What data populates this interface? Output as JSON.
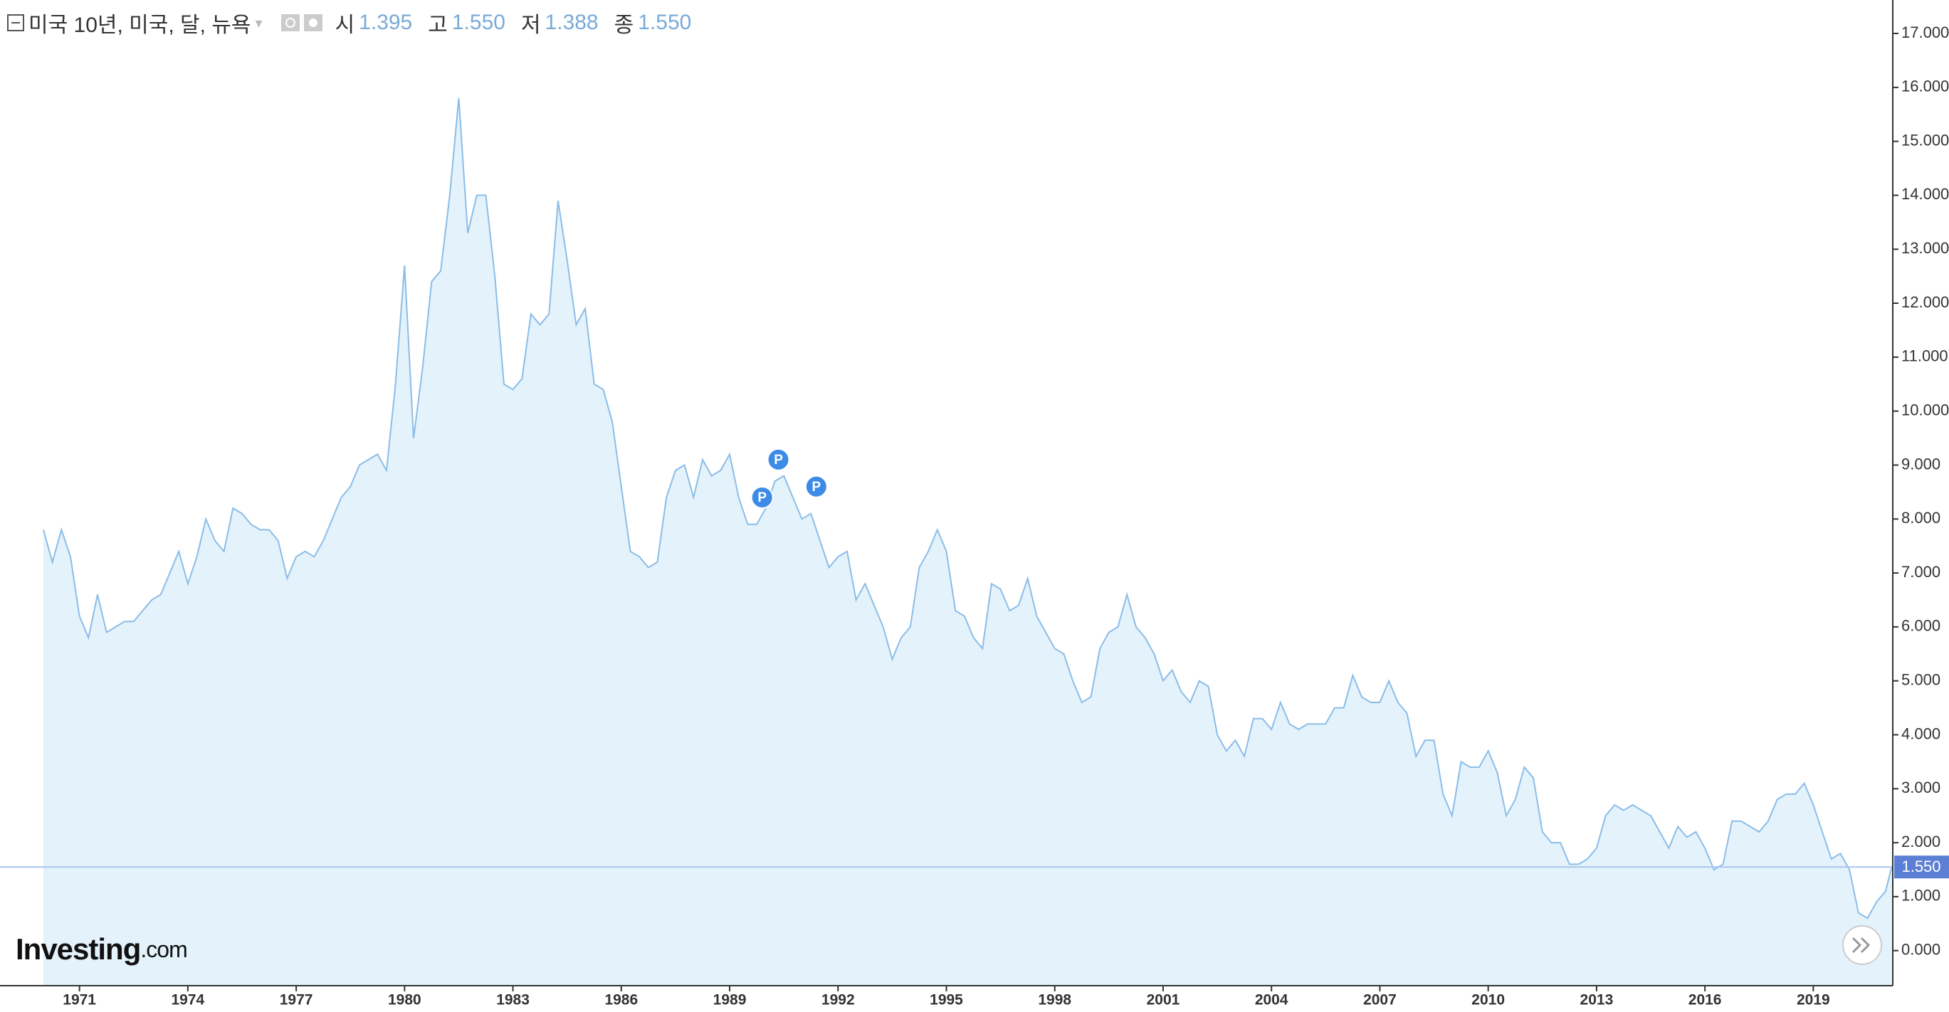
{
  "header": {
    "title": "미국 10년, 미국, 달, 뉴욕",
    "open_label": "시",
    "open": "1.395",
    "high_label": "고",
    "high": "1.550",
    "low_label": "저",
    "low": "1.388",
    "close_label": "종",
    "close": "1.550"
  },
  "brand": "Investing",
  "brand_suffix": ".com",
  "chart_data": {
    "type": "area",
    "color": "#8bbde8",
    "fill": "#e4f2fb",
    "x": [
      1970,
      1970.25,
      1970.5,
      1970.75,
      1971,
      1971.25,
      1971.5,
      1971.75,
      1972,
      1972.25,
      1972.5,
      1972.75,
      1973,
      1973.25,
      1973.5,
      1973.75,
      1974,
      1974.25,
      1974.5,
      1974.75,
      1975,
      1975.25,
      1975.5,
      1975.75,
      1976,
      1976.25,
      1976.5,
      1976.75,
      1977,
      1977.25,
      1977.5,
      1977.75,
      1978,
      1978.25,
      1978.5,
      1978.75,
      1979,
      1979.25,
      1979.5,
      1979.75,
      1980,
      1980.25,
      1980.5,
      1980.75,
      1981,
      1981.25,
      1981.5,
      1981.75,
      1982,
      1982.25,
      1982.5,
      1982.75,
      1983,
      1983.25,
      1983.5,
      1983.75,
      1984,
      1984.25,
      1984.5,
      1984.75,
      1985,
      1985.25,
      1985.5,
      1985.75,
      1986,
      1986.25,
      1986.5,
      1986.75,
      1987,
      1987.25,
      1987.5,
      1987.75,
      1988,
      1988.25,
      1988.5,
      1988.75,
      1989,
      1989.25,
      1989.5,
      1989.75,
      1990,
      1990.25,
      1990.5,
      1990.75,
      1991,
      1991.25,
      1991.5,
      1991.75,
      1992,
      1992.25,
      1992.5,
      1992.75,
      1993,
      1993.25,
      1993.5,
      1993.75,
      1994,
      1994.25,
      1994.5,
      1994.75,
      1995,
      1995.25,
      1995.5,
      1995.75,
      1996,
      1996.25,
      1996.5,
      1996.75,
      1997,
      1997.25,
      1997.5,
      1997.75,
      1998,
      1998.25,
      1998.5,
      1998.75,
      1999,
      1999.25,
      1999.5,
      1999.75,
      2000,
      2000.25,
      2000.5,
      2000.75,
      2001,
      2001.25,
      2001.5,
      2001.75,
      2002,
      2002.25,
      2002.5,
      2002.75,
      2003,
      2003.25,
      2003.5,
      2003.75,
      2004,
      2004.25,
      2004.5,
      2004.75,
      2005,
      2005.25,
      2005.5,
      2005.75,
      2006,
      2006.25,
      2006.5,
      2006.75,
      2007,
      2007.25,
      2007.5,
      2007.75,
      2008,
      2008.25,
      2008.5,
      2008.75,
      2009,
      2009.25,
      2009.5,
      2009.75,
      2010,
      2010.25,
      2010.5,
      2010.75,
      2011,
      2011.25,
      2011.5,
      2011.75,
      2012,
      2012.25,
      2012.5,
      2012.75,
      2013,
      2013.25,
      2013.5,
      2013.75,
      2014,
      2014.25,
      2014.5,
      2014.75,
      2015,
      2015.25,
      2015.5,
      2015.75,
      2016,
      2016.25,
      2016.5,
      2016.75,
      2017,
      2017.25,
      2017.5,
      2017.75,
      2018,
      2018.25,
      2018.5,
      2018.75,
      2019,
      2019.25,
      2019.5,
      2019.75,
      2020,
      2020.25,
      2020.5,
      2020.75,
      2021,
      2021.17
    ],
    "values": [
      7.8,
      7.2,
      7.8,
      7.3,
      6.2,
      5.8,
      6.6,
      5.9,
      6.0,
      6.1,
      6.1,
      6.3,
      6.5,
      6.6,
      7.0,
      7.4,
      6.8,
      7.3,
      8.0,
      7.6,
      7.4,
      8.2,
      8.1,
      7.9,
      7.8,
      7.8,
      7.6,
      6.9,
      7.3,
      7.4,
      7.3,
      7.6,
      8.0,
      8.4,
      8.6,
      9.0,
      9.1,
      9.2,
      8.9,
      10.5,
      12.7,
      9.5,
      10.8,
      12.4,
      12.6,
      14.0,
      15.8,
      13.3,
      14.0,
      14.0,
      12.5,
      10.5,
      10.4,
      10.6,
      11.8,
      11.6,
      11.8,
      13.9,
      12.8,
      11.6,
      11.9,
      10.5,
      10.4,
      9.8,
      8.6,
      7.4,
      7.3,
      7.1,
      7.2,
      8.4,
      8.9,
      9.0,
      8.4,
      9.1,
      8.8,
      8.9,
      9.2,
      8.4,
      7.9,
      7.9,
      8.2,
      8.7,
      8.8,
      8.4,
      8.0,
      8.1,
      7.6,
      7.1,
      7.3,
      7.4,
      6.5,
      6.8,
      6.4,
      6.0,
      5.4,
      5.8,
      6.0,
      7.1,
      7.4,
      7.8,
      7.4,
      6.3,
      6.2,
      5.8,
      5.6,
      6.8,
      6.7,
      6.3,
      6.4,
      6.9,
      6.2,
      5.9,
      5.6,
      5.5,
      5.0,
      4.6,
      4.7,
      5.6,
      5.9,
      6.0,
      6.6,
      6.0,
      5.8,
      5.5,
      5.0,
      5.2,
      4.8,
      4.6,
      5.0,
      4.9,
      4.0,
      3.7,
      3.9,
      3.6,
      4.3,
      4.3,
      4.1,
      4.6,
      4.2,
      4.1,
      4.2,
      4.2,
      4.2,
      4.5,
      4.5,
      5.1,
      4.7,
      4.6,
      4.6,
      5.0,
      4.6,
      4.4,
      3.6,
      3.9,
      3.9,
      2.9,
      2.5,
      3.5,
      3.4,
      3.4,
      3.7,
      3.3,
      2.5,
      2.8,
      3.4,
      3.2,
      2.2,
      2.0,
      2.0,
      1.6,
      1.6,
      1.7,
      1.9,
      2.5,
      2.7,
      2.6,
      2.7,
      2.6,
      2.5,
      2.2,
      1.9,
      2.3,
      2.1,
      2.2,
      1.9,
      1.5,
      1.6,
      2.4,
      2.4,
      2.3,
      2.2,
      2.4,
      2.8,
      2.9,
      2.9,
      3.1,
      2.7,
      2.2,
      1.7,
      1.8,
      1.5,
      0.7,
      0.6,
      0.9,
      1.1,
      1.55
    ],
    "xlim": [
      1968.8,
      2021.2
    ],
    "xticks": [
      1971,
      1974,
      1977,
      1980,
      1983,
      1986,
      1989,
      1992,
      1995,
      1998,
      2001,
      2004,
      2007,
      2010,
      2013,
      2016,
      2019
    ],
    "ylim": [
      -0.65,
      17.62
    ],
    "yticks": [
      {
        "value": 0,
        "label": "0.000"
      },
      {
        "value": 1,
        "label": "1.000"
      },
      {
        "value": 2,
        "label": "2.000"
      },
      {
        "value": 3,
        "label": "3.000"
      },
      {
        "value": 4,
        "label": "4.000"
      },
      {
        "value": 5,
        "label": "5.000"
      },
      {
        "value": 6,
        "label": "6.000"
      },
      {
        "value": 7,
        "label": "7.000"
      },
      {
        "value": 8,
        "label": "8.000"
      },
      {
        "value": 9,
        "label": "9.000"
      },
      {
        "value": 10,
        "label": "10.000"
      },
      {
        "value": 11,
        "label": "11.000"
      },
      {
        "value": 12,
        "label": "12.000"
      },
      {
        "value": 13,
        "label": "13.000"
      },
      {
        "value": 14,
        "label": "14.000"
      },
      {
        "value": 15,
        "label": "15.000"
      },
      {
        "value": 16,
        "label": "16.000"
      },
      {
        "value": 17,
        "label": "17.000"
      }
    ],
    "last_value": {
      "value": 1.55,
      "label": "1.550"
    },
    "annotations": [
      {
        "x": 1989.9,
        "y": 8.4,
        "label": "P"
      },
      {
        "x": 1990.35,
        "y": 9.1,
        "label": "P"
      },
      {
        "x": 1991.4,
        "y": 8.6,
        "label": "P"
      }
    ]
  }
}
